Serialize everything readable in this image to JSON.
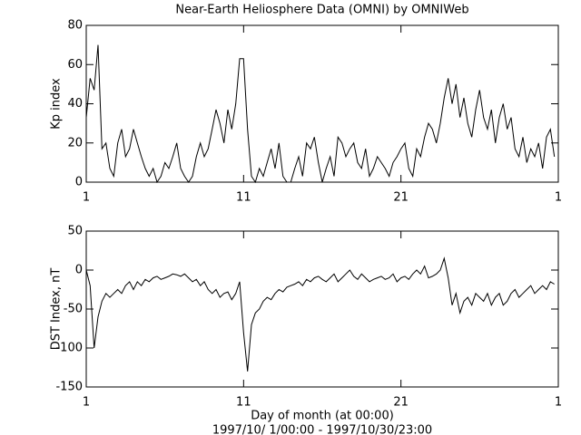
{
  "title": "Near-Earth Heliosphere Data (OMNI) by OMNIWeb",
  "xlabel": "Day of month (at 00:00)",
  "range_label": "1997/10/ 1/00:00 - 1997/10/30/23:00",
  "chart_data": [
    {
      "type": "line",
      "ylabel": "Kp index",
      "color": "#000000",
      "xlim": [
        1,
        31
      ],
      "xticks": [
        1,
        11,
        21,
        {
          "value": 31,
          "label": "1"
        }
      ],
      "ylim": [
        0,
        80
      ],
      "yticks": [
        0,
        20,
        40,
        60,
        80
      ],
      "x": [
        1,
        1.25,
        1.5,
        1.75,
        2,
        2.25,
        2.5,
        2.75,
        3,
        3.25,
        3.5,
        3.75,
        4,
        4.25,
        4.5,
        4.75,
        5,
        5.25,
        5.5,
        5.75,
        6,
        6.25,
        6.5,
        6.75,
        7,
        7.25,
        7.5,
        7.75,
        8,
        8.25,
        8.5,
        8.75,
        9,
        9.25,
        9.5,
        9.75,
        10,
        10.25,
        10.5,
        10.75,
        11,
        11.25,
        11.5,
        11.75,
        12,
        12.25,
        12.5,
        12.75,
        13,
        13.25,
        13.5,
        13.75,
        14,
        14.25,
        14.5,
        14.75,
        15,
        15.25,
        15.5,
        15.75,
        16,
        16.25,
        16.5,
        16.75,
        17,
        17.25,
        17.5,
        17.75,
        18,
        18.25,
        18.5,
        18.75,
        19,
        19.25,
        19.5,
        19.75,
        20,
        20.25,
        20.5,
        20.75,
        21,
        21.25,
        21.5,
        21.75,
        22,
        22.25,
        22.5,
        22.75,
        23,
        23.25,
        23.5,
        23.75,
        24,
        24.25,
        24.5,
        24.75,
        25,
        25.25,
        25.5,
        25.75,
        26,
        26.25,
        26.5,
        26.75,
        27,
        27.25,
        27.5,
        27.75,
        28,
        28.25,
        28.5,
        28.75,
        29,
        29.25,
        29.5,
        29.75,
        30,
        30.25,
        30.5,
        30.75
      ],
      "values": [
        33,
        53,
        47,
        70,
        17,
        20,
        7,
        3,
        20,
        27,
        13,
        17,
        27,
        20,
        13,
        7,
        3,
        7,
        0,
        3,
        10,
        7,
        13,
        20,
        7,
        3,
        0,
        3,
        13,
        20,
        13,
        17,
        27,
        37,
        30,
        20,
        37,
        27,
        40,
        63,
        63,
        27,
        3,
        0,
        7,
        3,
        10,
        17,
        7,
        20,
        3,
        0,
        0,
        7,
        13,
        3,
        20,
        17,
        23,
        10,
        0,
        7,
        13,
        3,
        23,
        20,
        13,
        17,
        20,
        10,
        7,
        17,
        3,
        7,
        13,
        10,
        7,
        3,
        10,
        13,
        17,
        20,
        7,
        3,
        17,
        13,
        23,
        30,
        27,
        20,
        30,
        43,
        53,
        40,
        50,
        33,
        43,
        30,
        23,
        37,
        47,
        33,
        27,
        37,
        20,
        33,
        40,
        27,
        33,
        17,
        13,
        23,
        10,
        17,
        13,
        20,
        7,
        23,
        27,
        13
      ]
    },
    {
      "type": "line",
      "ylabel": "DST Index, nT",
      "color": "#000000",
      "xlim": [
        1,
        31
      ],
      "xticks": [
        1,
        11,
        21,
        {
          "value": 31,
          "label": "1"
        }
      ],
      "ylim": [
        -150,
        50
      ],
      "yticks": [
        -150,
        -100,
        -50,
        0,
        50
      ],
      "x": [
        1,
        1.25,
        1.5,
        1.75,
        2,
        2.25,
        2.5,
        2.75,
        3,
        3.25,
        3.5,
        3.75,
        4,
        4.25,
        4.5,
        4.75,
        5,
        5.25,
        5.5,
        5.75,
        6,
        6.25,
        6.5,
        6.75,
        7,
        7.25,
        7.5,
        7.75,
        8,
        8.25,
        8.5,
        8.75,
        9,
        9.25,
        9.5,
        9.75,
        10,
        10.25,
        10.5,
        10.75,
        11,
        11.25,
        11.5,
        11.75,
        12,
        12.25,
        12.5,
        12.75,
        13,
        13.25,
        13.5,
        13.75,
        14,
        14.25,
        14.5,
        14.75,
        15,
        15.25,
        15.5,
        15.75,
        16,
        16.25,
        16.5,
        16.75,
        17,
        17.25,
        17.5,
        17.75,
        18,
        18.25,
        18.5,
        18.75,
        19,
        19.25,
        19.5,
        19.75,
        20,
        20.25,
        20.5,
        20.75,
        21,
        21.25,
        21.5,
        21.75,
        22,
        22.25,
        22.5,
        22.75,
        23,
        23.25,
        23.5,
        23.75,
        24,
        24.25,
        24.5,
        24.75,
        25,
        25.25,
        25.5,
        25.75,
        26,
        26.25,
        26.5,
        26.75,
        27,
        27.25,
        27.5,
        27.75,
        28,
        28.25,
        28.5,
        28.75,
        29,
        29.25,
        29.5,
        29.75,
        30,
        30.25,
        30.5,
        30.75
      ],
      "values": [
        0,
        -20,
        -100,
        -60,
        -40,
        -30,
        -35,
        -30,
        -25,
        -30,
        -20,
        -15,
        -25,
        -15,
        -20,
        -12,
        -15,
        -10,
        -8,
        -12,
        -10,
        -8,
        -5,
        -6,
        -8,
        -5,
        -10,
        -15,
        -12,
        -20,
        -15,
        -25,
        -30,
        -25,
        -35,
        -30,
        -28,
        -38,
        -30,
        -15,
        -80,
        -130,
        -70,
        -55,
        -50,
        -40,
        -35,
        -38,
        -30,
        -25,
        -28,
        -22,
        -20,
        -18,
        -15,
        -20,
        -12,
        -15,
        -10,
        -8,
        -12,
        -15,
        -10,
        -5,
        -15,
        -10,
        -5,
        0,
        -8,
        -12,
        -5,
        -10,
        -15,
        -12,
        -10,
        -8,
        -12,
        -10,
        -5,
        -15,
        -10,
        -8,
        -12,
        -5,
        0,
        -5,
        5,
        -10,
        -8,
        -5,
        0,
        15,
        -10,
        -45,
        -30,
        -55,
        -40,
        -35,
        -45,
        -30,
        -35,
        -40,
        -30,
        -45,
        -35,
        -30,
        -45,
        -40,
        -30,
        -25,
        -35,
        -30,
        -25,
        -20,
        -30,
        -25,
        -20,
        -25,
        -15,
        -18
      ]
    }
  ]
}
